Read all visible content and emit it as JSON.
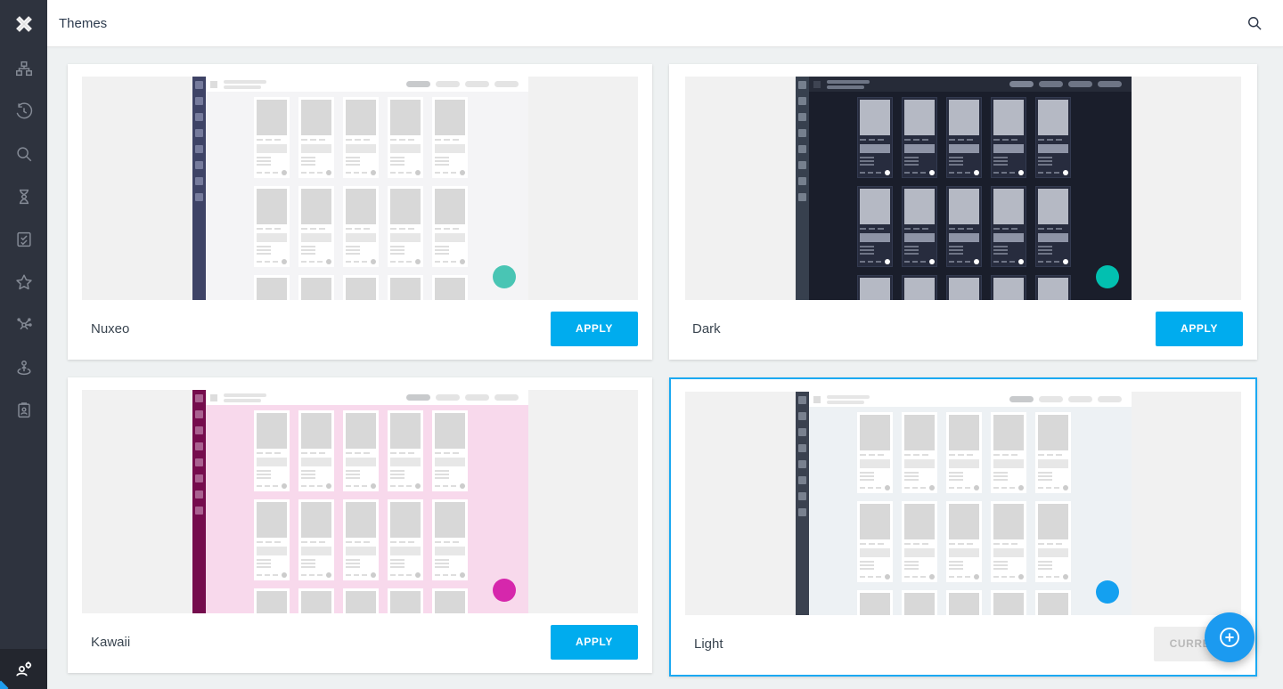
{
  "header": {
    "title": "Themes",
    "search_icon": "search"
  },
  "sidebar": {
    "logo_icon": "nuxeo-x-logo",
    "items": [
      {
        "name": "browser",
        "icon": "tree-icon"
      },
      {
        "name": "recently-viewed",
        "icon": "history-icon"
      },
      {
        "name": "search",
        "icon": "search-icon"
      },
      {
        "name": "tasks",
        "icon": "hourglass-icon"
      },
      {
        "name": "workflows",
        "icon": "checklist-icon"
      },
      {
        "name": "favorites",
        "icon": "star-icon"
      },
      {
        "name": "collections",
        "icon": "collections-icon"
      },
      {
        "name": "personal-space",
        "icon": "person-pin-icon"
      },
      {
        "name": "profile",
        "icon": "id-card-icon"
      }
    ],
    "admin_icon": "admin-settings-icon"
  },
  "fab": {
    "icon": "plus-circle-icon"
  },
  "colors": {
    "accent": "#00acee",
    "selection_border": "#1ba9f2",
    "fab": "#1b9af0",
    "page_bg": "#eef1f2",
    "sidebar_bg": "#2e333e",
    "sidebar_admin_bg": "#23262e"
  },
  "themes": [
    {
      "name": "Nuxeo",
      "action": "APPLY",
      "selected": false,
      "preview": {
        "margin": "#f1f1f1",
        "strip": "#3e4366",
        "strip_square": "#767b9c",
        "topbar_bg": "#ffffff",
        "topbar_sq": "#dddddd",
        "pill": "#e4e4e4",
        "pill_accent": "#c8cacc",
        "surface": "#f4f4f6",
        "tile_bg": "#ffffff",
        "tile_border": "rgba(0,0,0,0)",
        "tile_img": "#d8d8d8",
        "tile_line": "#dedede",
        "tile_bar": "#e7e7e7",
        "foot_dot": "#cccccc",
        "fab_dot": "#49c5b4"
      }
    },
    {
      "name": "Dark",
      "action": "APPLY",
      "selected": false,
      "preview": {
        "margin": "#f1f1f1",
        "strip": "#37404e",
        "strip_square": "#76808e",
        "topbar_bg": "#262b38",
        "topbar_sq": "#3e4452",
        "pill": "#6e7585",
        "pill_accent": "#7d8494",
        "surface": "#1a1e2b",
        "tile_bg": "#272c3e",
        "tile_border": "#333a50",
        "tile_img": "#b5b9c4",
        "tile_line": "#6e7485",
        "tile_bar": "#8e94a6",
        "foot_dot": "#ffffff",
        "fab_dot": "#02c0b0"
      }
    },
    {
      "name": "Kawaii",
      "action": "APPLY",
      "selected": false,
      "preview": {
        "margin": "#f1f1f1",
        "strip": "#750c4d",
        "strip_square": "#a96190",
        "topbar_bg": "#ffffff",
        "topbar_sq": "#dddddd",
        "pill": "#e4e4e4",
        "pill_accent": "#c8cacc",
        "surface": "#f8d9ec",
        "tile_bg": "#ffffff",
        "tile_border": "rgba(0,0,0,0)",
        "tile_img": "#d8d8d8",
        "tile_line": "#dedede",
        "tile_bar": "#e7e7e7",
        "foot_dot": "#cccccc",
        "fab_dot": "#d627ac"
      }
    },
    {
      "name": "Light",
      "action": "CURRENT",
      "selected": true,
      "preview": {
        "margin": "#f1f1f1",
        "strip": "#3a414f",
        "strip_square": "#79818f",
        "topbar_bg": "#ffffff",
        "topbar_sq": "#dddddd",
        "pill": "#e6e6e6",
        "pill_accent": "#c8cacc",
        "surface": "#edf1f4",
        "tile_bg": "#ffffff",
        "tile_border": "rgba(0,0,0,0)",
        "tile_img": "#d8d8d8",
        "tile_line": "#dedede",
        "tile_bar": "#e7e7e7",
        "foot_dot": "#cccccc",
        "fab_dot": "#14a0f0"
      }
    }
  ]
}
